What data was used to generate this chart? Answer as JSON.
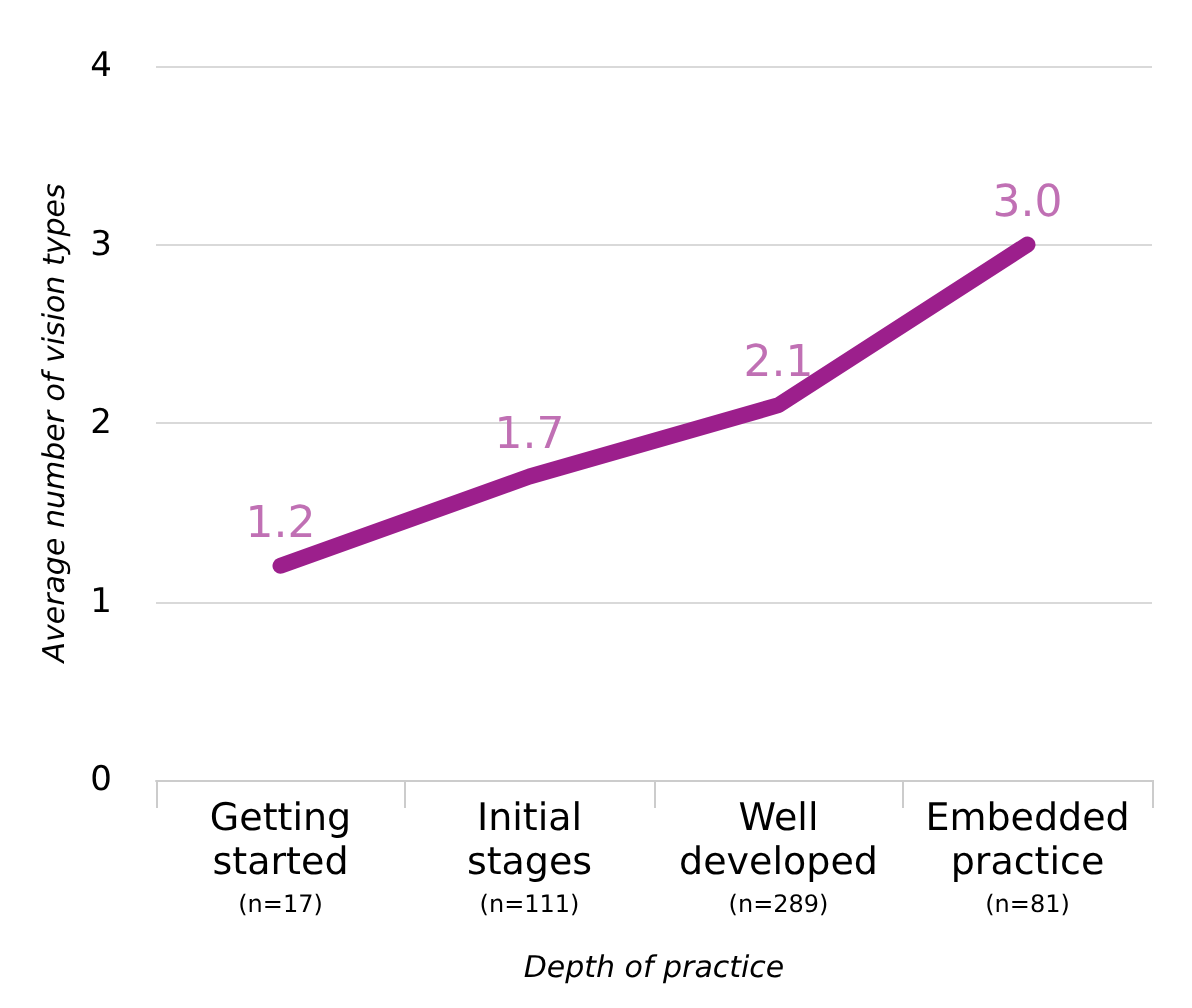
{
  "chart_data": {
    "type": "line",
    "xlabel": "Depth of practice",
    "ylabel": "Average number of vision types",
    "categories": [
      "Getting\nstarted\n(n=17)",
      "Initial\nstages\n(n=111)",
      "Well\ndeveloped\n(n=289)",
      "Embedded\npractice\n(n=81)"
    ],
    "series": [
      {
        "color": "#9c1f8c",
        "values": [
          1.2,
          1.7,
          2.1,
          3.0
        ],
        "value_labels": [
          "1.2",
          "1.7",
          "2.1",
          "3.0"
        ]
      }
    ],
    "ylim": [
      0,
      4
    ],
    "yticks": [
      0,
      1,
      2,
      3,
      4
    ],
    "grid": "y",
    "marker": "none",
    "line_style": "solid"
  }
}
